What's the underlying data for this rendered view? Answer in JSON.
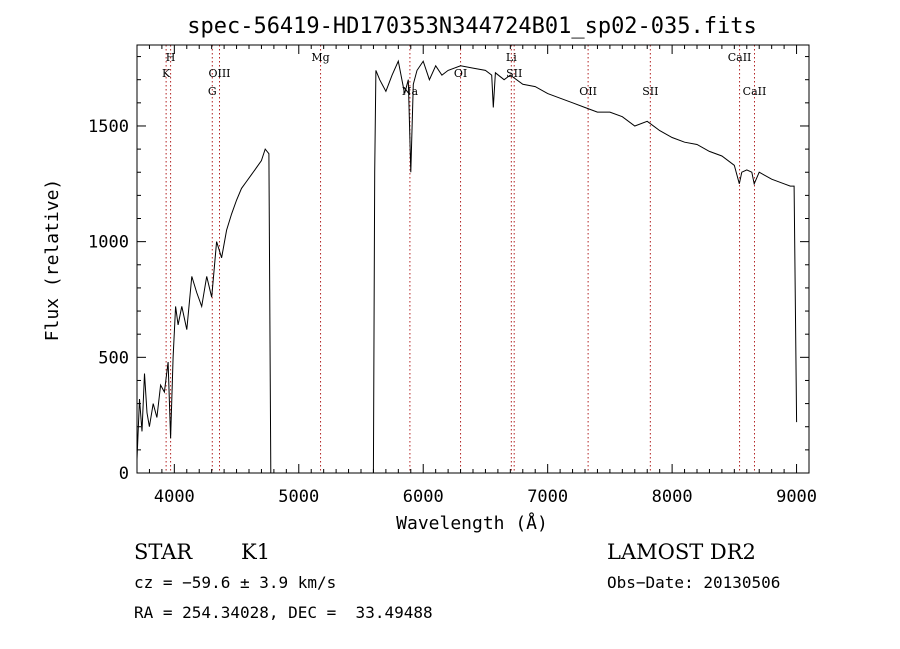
{
  "chart_data": {
    "type": "line",
    "title": "spec-56419-HD170353N344724B01_sp02-035.fits",
    "xlabel": "Wavelength (Å)",
    "ylabel": "Flux (relative)",
    "xlim": [
      3700,
      9100
    ],
    "ylim": [
      0,
      1850
    ],
    "x_ticks": [
      4000,
      5000,
      6000,
      7000,
      8000,
      9000
    ],
    "y_ticks": [
      0,
      500,
      1000,
      1500
    ],
    "grid": false,
    "line_color": "#000000",
    "series": [
      {
        "segments": [
          {
            "x": [
              3700,
              3720,
              3740,
              3760,
              3780,
              3800,
              3830,
              3860,
              3890,
              3920,
              3950,
              3970,
              3990,
              4010,
              4030,
              4060,
              4100,
              4140,
              4180,
              4220,
              4260,
              4300,
              4340,
              4380,
              4420,
              4460,
              4500,
              4540,
              4580,
              4620,
              4660,
              4700,
              4730,
              4760,
              4775
            ],
            "y": [
              60,
              320,
              180,
              430,
              260,
              200,
              300,
              240,
              380,
              350,
              480,
              150,
              500,
              720,
              640,
              720,
              620,
              850,
              780,
              720,
              850,
              760,
              1000,
              930,
              1050,
              1120,
              1180,
              1230,
              1260,
              1290,
              1320,
              1350,
              1400,
              1380,
              0
            ]
          },
          {
            "x": [
              5600,
              5610,
              5620,
              5650,
              5700,
              5750,
              5800,
              5850,
              5880,
              5900,
              5920,
              5950,
              6000,
              6050,
              6100,
              6150,
              6200,
              6300,
              6400,
              6500,
              6550,
              6563,
              6580,
              6650,
              6700,
              6800,
              6900,
              7000,
              7100,
              7200,
              7300,
              7400,
              7500,
              7600,
              7700,
              7800,
              7900,
              8000,
              8100,
              8200,
              8300,
              8400,
              8500,
              8540,
              8560,
              8600,
              8640,
              8660,
              8700,
              8800,
              8900,
              8950,
              8980,
              9000
            ],
            "y": [
              0,
              1300,
              1740,
              1700,
              1650,
              1720,
              1780,
              1640,
              1700,
              1300,
              1680,
              1740,
              1780,
              1700,
              1760,
              1720,
              1740,
              1760,
              1750,
              1740,
              1720,
              1580,
              1730,
              1700,
              1720,
              1680,
              1670,
              1640,
              1620,
              1600,
              1580,
              1560,
              1560,
              1540,
              1500,
              1520,
              1480,
              1450,
              1430,
              1420,
              1390,
              1370,
              1330,
              1250,
              1300,
              1310,
              1300,
              1250,
              1300,
              1270,
              1250,
              1240,
              1240,
              220
            ]
          }
        ]
      }
    ],
    "lines": [
      {
        "label": "H",
        "x": 3970,
        "row": 1
      },
      {
        "label": "K",
        "x": 3934,
        "row": 2
      },
      {
        "label": "OIII",
        "x": 4363,
        "row": 2
      },
      {
        "label": "G",
        "x": 4305,
        "row": 3
      },
      {
        "label": "Mg",
        "x": 5175,
        "row": 1
      },
      {
        "label": "Na",
        "x": 5893,
        "row": 3
      },
      {
        "label": "OI",
        "x": 6300,
        "row": 2
      },
      {
        "label": "Li",
        "x": 6708,
        "row": 1
      },
      {
        "label": "SII",
        "x": 6731,
        "row": 2
      },
      {
        "label": "OII",
        "x": 7325,
        "row": 3
      },
      {
        "label": "SII",
        "x": 7825,
        "row": 3
      },
      {
        "label": "CaII",
        "x": 8542,
        "row": 1
      },
      {
        "label": "CaII",
        "x": 8662,
        "row": 3
      }
    ]
  },
  "info": {
    "object_type": "STAR",
    "subclass": "K1",
    "cz": "cz = −59.6 ± 3.9 km/s",
    "coords": "RA = 254.34028, DEC =  33.49488",
    "survey": "LAMOST DR2",
    "obs_date": "Obs−Date: 20130506"
  }
}
